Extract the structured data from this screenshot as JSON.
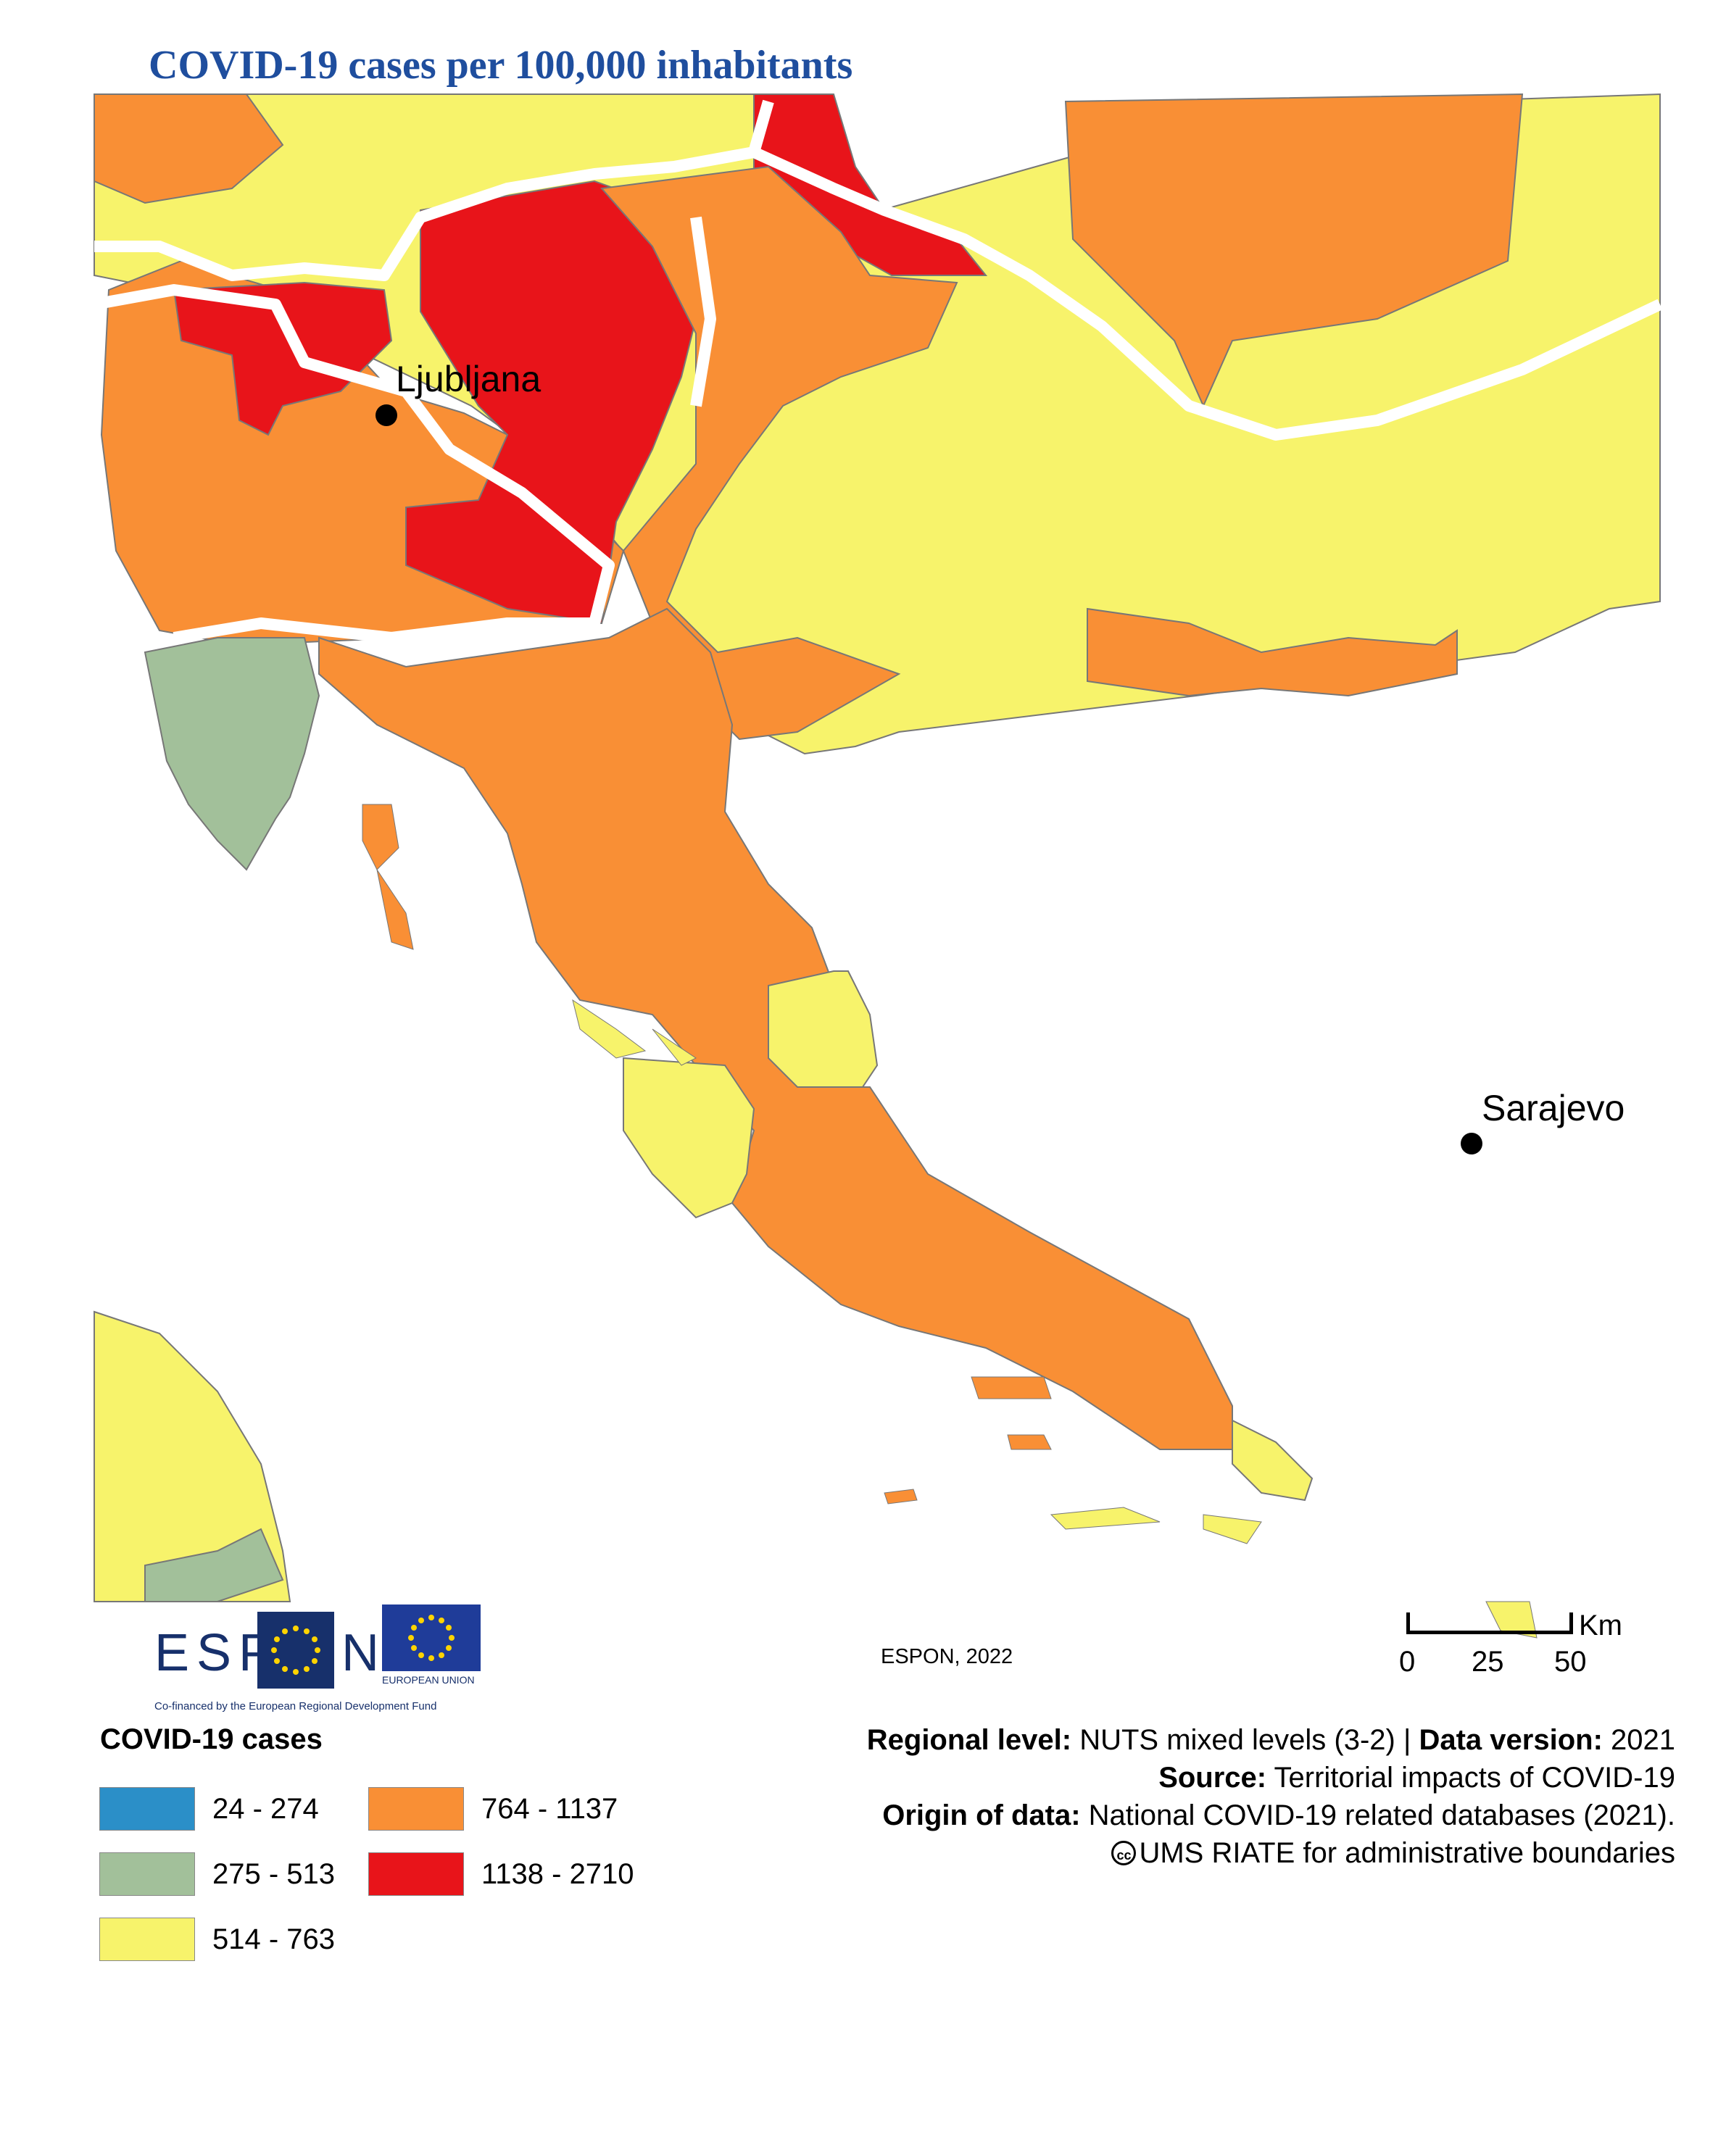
{
  "title": "COVID-19 cases per 100,000 inhabitants",
  "colors": {
    "class_24_274": "#2b8fc8",
    "class_275_513": "#a2c09a",
    "class_514_763": "#f7f36b",
    "class_764_1137": "#f98f35",
    "class_1138_2710": "#e8141a",
    "title": "#1f4e9e",
    "borders": "#ffffff"
  },
  "cities": [
    {
      "name": "Ljubljana"
    },
    {
      "name": "Sarajevo"
    }
  ],
  "logos": {
    "espon_text": "ESP",
    "espon_text_end": "N",
    "eu_label": "EUROPEAN UNION",
    "cofinanced": "Co-financed by the European Regional Development Fund"
  },
  "credit": "ESPON, 2022",
  "scale_bar": {
    "unit": "Km",
    "ticks": [
      "0",
      "25",
      "50"
    ]
  },
  "legend": {
    "title": "COVID-19 cases",
    "items": [
      {
        "label": "24 - 274",
        "color": "#2b8fc8"
      },
      {
        "label": "275 - 513",
        "color": "#a2c09a"
      },
      {
        "label": "514 - 763",
        "color": "#f7f36b"
      },
      {
        "label": "764 - 1137",
        "color": "#f98f35"
      },
      {
        "label": "1138 - 2710",
        "color": "#e8141a"
      }
    ]
  },
  "info": {
    "regional_level_label": "Regional level:",
    "regional_level_value": "NUTS mixed levels (3-2) |",
    "data_version_label": "Data version:",
    "data_version_value": "2021",
    "source_label": "Source:",
    "source_value": "Territorial impacts of COVID-19",
    "origin_label": "Origin of data:",
    "origin_value": "National COVID-19 related databases (2021).",
    "boundaries_cc": "cc",
    "boundaries": "UMS RIATE for administrative boundaries"
  }
}
